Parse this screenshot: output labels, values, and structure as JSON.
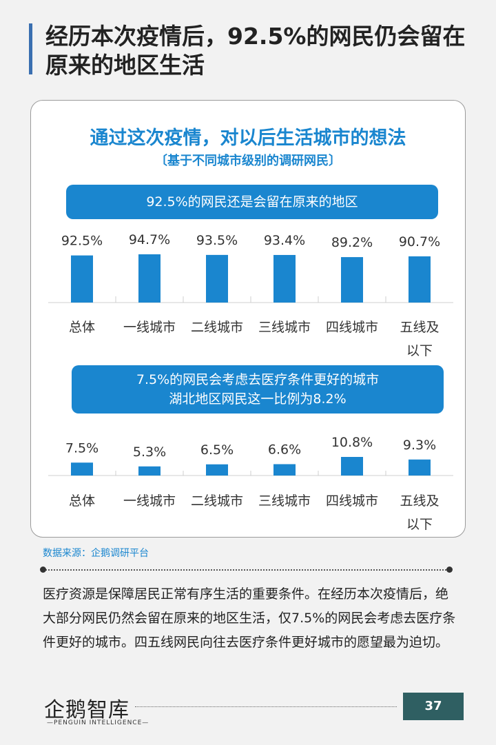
{
  "page": {
    "title": "经历本次疫情后，92.5%的网民仍会留在原来的地区生活",
    "chart_title": "通过这次疫情，对以后生活城市的想法",
    "chart_subtitle": "〔基于不同城市级别的调研网民〕",
    "banner1": "92.5%的网民还是会留在原来的地区",
    "banner2_line1": "7.5%的网民会考虑去医疗条件更好的城市",
    "banner2_line2": "湖北地区网民这一比例为8.2%",
    "source": "数据来源：企鹅调研平台",
    "body": "医疗资源是保障居民正常有序生活的重要条件。在经历本次疫情后，绝大部分网民仍然会留在原来的地区生活，仅7.5%的网民会考虑去医疗条件更好的城市。四五线网民向往去医疗条件更好城市的愿望最为迫切。",
    "logo": "企鹅智库",
    "logo_sub": "—PENGUIN INTELLIGENCE—",
    "page_number": "37"
  },
  "colors": {
    "accent": "#1a86cf",
    "page_num_bg": "#2f5f62"
  },
  "chart_data": [
    {
      "type": "bar",
      "categories": [
        "总体",
        "一线城市",
        "二线城市",
        "三线城市",
        "四线城市",
        "五线及以下"
      ],
      "category_lines": [
        [
          "总体"
        ],
        [
          "一线城市"
        ],
        [
          "二线城市"
        ],
        [
          "三线城市"
        ],
        [
          "四线城市"
        ],
        [
          "五线及",
          "以下"
        ]
      ],
      "values": [
        92.5,
        94.7,
        93.5,
        93.4,
        89.2,
        90.7
      ],
      "labels": [
        "92.5%",
        "94.7%",
        "93.5%",
        "93.4%",
        "89.2%",
        "90.7%"
      ]
    },
    {
      "type": "bar",
      "categories": [
        "总体",
        "一线城市",
        "二线城市",
        "三线城市",
        "四线城市",
        "五线及以下"
      ],
      "category_lines": [
        [
          "总体"
        ],
        [
          "一线城市"
        ],
        [
          "二线城市"
        ],
        [
          "三线城市"
        ],
        [
          "四线城市"
        ],
        [
          "五线及",
          "以下"
        ]
      ],
      "values": [
        7.5,
        5.3,
        6.5,
        6.6,
        10.8,
        9.3
      ],
      "labels": [
        "7.5%",
        "5.3%",
        "6.5%",
        "6.6%",
        "10.8%",
        "9.3%"
      ]
    }
  ]
}
